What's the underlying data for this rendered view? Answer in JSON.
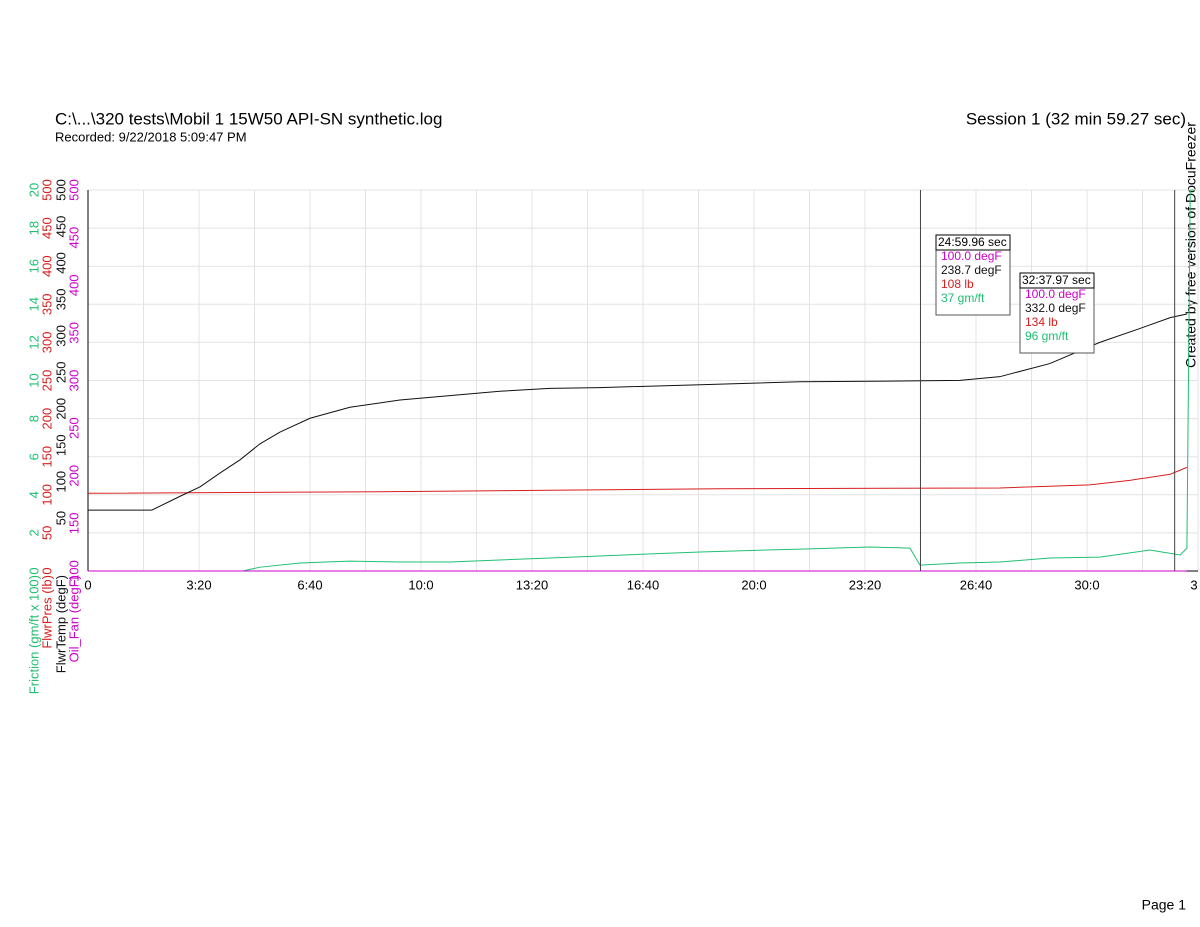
{
  "header": {
    "file": "C:\\...\\320 tests\\Mobil 1 15W50 API-SN synthetic.log",
    "recorded": "Recorded: 9/22/2018 5:09:47 PM",
    "session": "Session 1 (32 min 59.27 sec)",
    "watermark": "Created by free version of DocuFreezer",
    "page": "Page 1"
  },
  "chart_data": {
    "type": "line",
    "grid": true,
    "xlim": [
      0,
      2000
    ],
    "xticks": [
      0,
      {
        "value": 200,
        "label": "3:20"
      },
      {
        "value": 400,
        "label": "6:40"
      },
      {
        "value": 600,
        "label": "10:0"
      },
      {
        "value": 800,
        "label": "13:20"
      },
      {
        "value": 1000,
        "label": "16:40"
      },
      {
        "value": 1200,
        "label": "20:0"
      },
      {
        "value": 1400,
        "label": "23:20"
      },
      {
        "value": 1600,
        "label": "26:40"
      },
      {
        "value": 1800,
        "label": "30:0"
      },
      {
        "value": 2000,
        "label": "3"
      }
    ],
    "axes": [
      {
        "name": "Friction (gm/ft x 100)",
        "color": "#1fbf72",
        "ylim": [
          0,
          20
        ],
        "yticks": [
          0,
          2,
          4,
          6,
          8,
          10,
          12,
          14,
          16,
          18,
          20
        ]
      },
      {
        "name": "FlwrPres (lb)",
        "color": "#d81e1e",
        "ylim": [
          0,
          500
        ],
        "yticks": [
          0,
          50,
          100,
          150,
          200,
          250,
          300,
          350,
          400,
          450,
          500
        ]
      },
      {
        "name": "FlwrTemp (degF)",
        "color": "#111111",
        "ylim": [
          -22.5,
          500
        ],
        "yticks": [
          50,
          100,
          150,
          200,
          250,
          300,
          350,
          400,
          450,
          500
        ]
      },
      {
        "name": "Oil_Fan (degF)",
        "color": "#cc00cc",
        "ylim": [
          100,
          500
        ],
        "yticks": [
          100,
          150,
          200,
          250,
          300,
          350,
          400,
          450,
          500
        ]
      }
    ],
    "series": [
      {
        "name": "Friction (gm/ft x 100)",
        "color": "#1fbf72",
        "axis": 0,
        "x": [
          0,
          279,
          310,
          382,
          472,
          562,
          652,
          742,
          832,
          922,
          1103,
          1283,
          1409,
          1481,
          1499,
          1571,
          1643,
          1733,
          1823,
          1913,
          1968,
          1980,
          1986,
          1992
        ],
        "values": [
          0,
          0,
          0.2,
          0.42,
          0.52,
          0.47,
          0.47,
          0.58,
          0.68,
          0.79,
          1.0,
          1.15,
          1.26,
          1.2,
          0.31,
          0.42,
          0.47,
          0.68,
          0.73,
          1.1,
          0.84,
          1.2,
          20,
          20
        ]
      },
      {
        "name": "FlwrPres (lb)",
        "color": "#d81e1e",
        "axis": 1,
        "x": [
          0,
          526,
          832,
          1138,
          1643,
          1805,
          1877,
          1950,
          1980
        ],
        "values": [
          102,
          104,
          106,
          108,
          109,
          113,
          119,
          127,
          136
        ]
      },
      {
        "name": "FlwrTemp (degF)",
        "color": "#111111",
        "axis": 2,
        "x": [
          0,
          115,
          166,
          202,
          238,
          274,
          310,
          346,
          400,
          472,
          562,
          652,
          742,
          832,
          922,
          1103,
          1283,
          1463,
          1571,
          1643,
          1733,
          1823,
          1895,
          1950,
          1980
        ],
        "values": [
          61,
          61,
          80,
          93,
          112,
          130,
          152,
          168,
          187,
          202,
          212,
          218,
          224,
          228,
          229,
          233,
          237,
          238,
          239,
          244,
          262,
          291,
          310,
          325,
          330
        ]
      },
      {
        "name": "Oil_Fan (degF)",
        "color": "#cc00cc",
        "axis": 3,
        "x": [
          0,
          1980
        ],
        "values": [
          100,
          100
        ]
      }
    ],
    "cursors": [
      {
        "x": 1499.96,
        "label": "24:59.96 sec",
        "readings": [
          "100.0 degF",
          "238.7 degF",
          "108 lb",
          "37 gm/ft"
        ]
      },
      {
        "x": 1957.97,
        "label": "32:37.97 sec",
        "readings": [
          "100.0 degF",
          "332.0 degF",
          "134 lb",
          "96 gm/ft"
        ]
      }
    ]
  }
}
